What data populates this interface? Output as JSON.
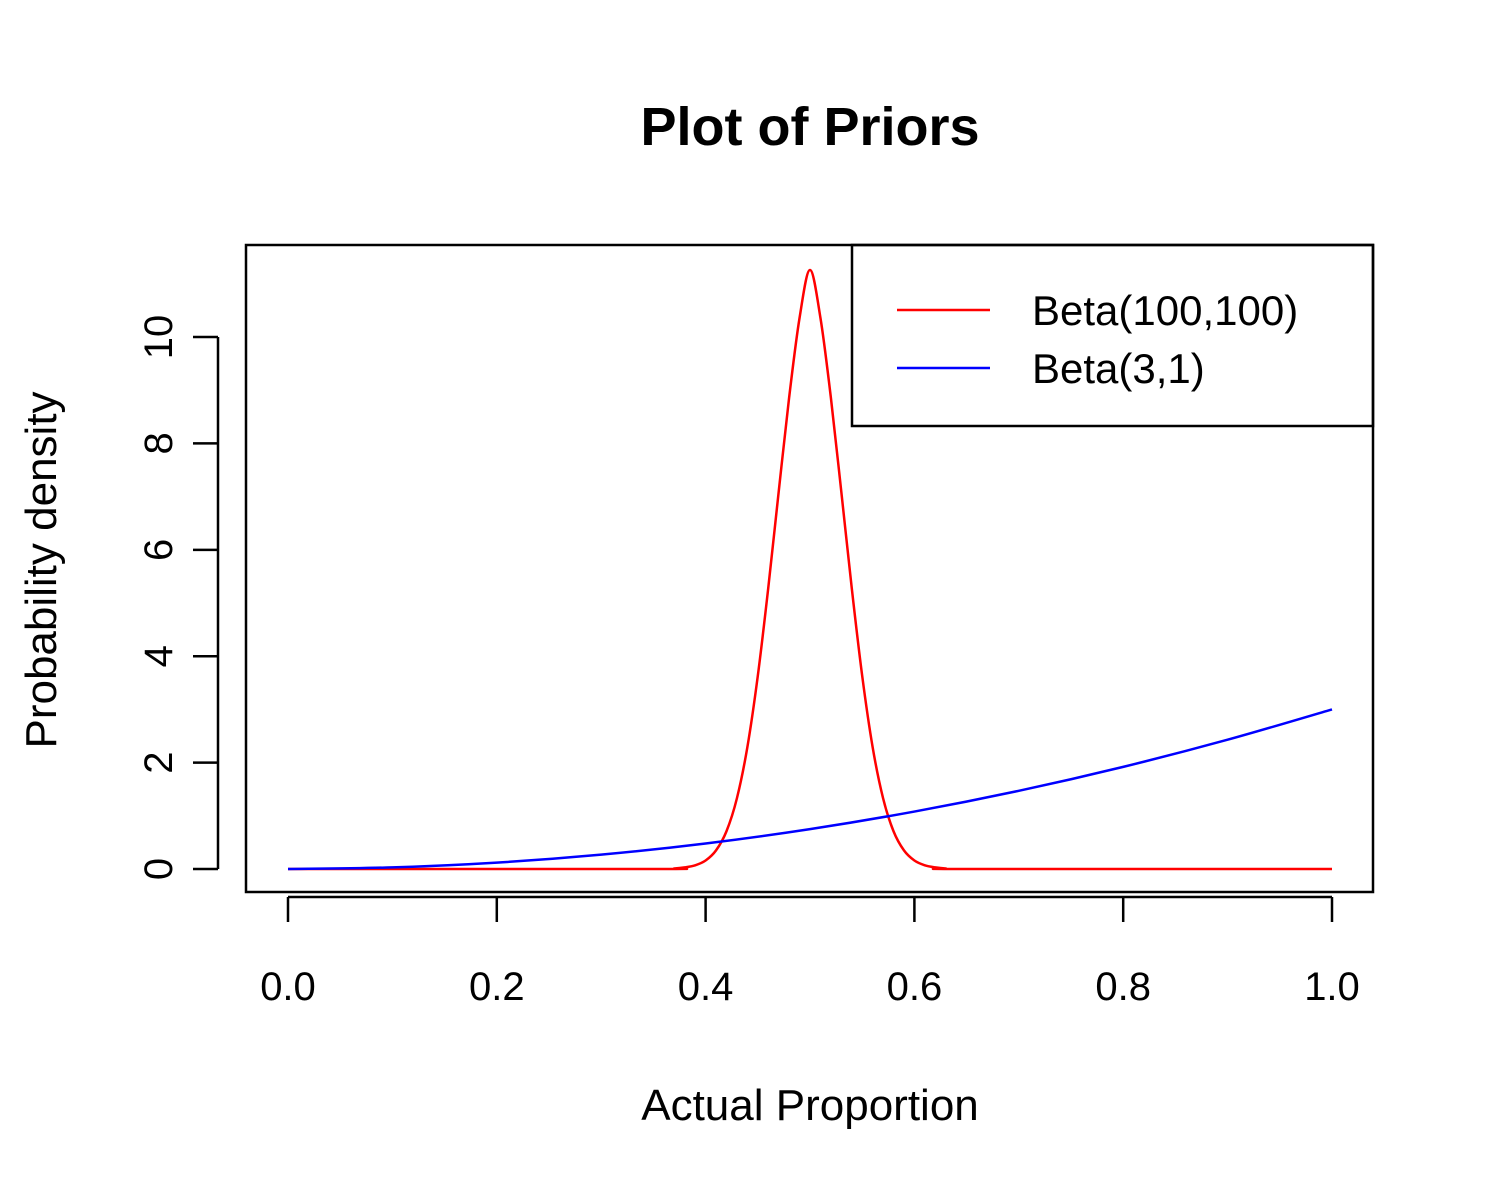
{
  "chart_data": {
    "type": "line",
    "title": "Plot of Priors",
    "xlabel": "Actual Proportion",
    "ylabel": "Probability density",
    "xlim": [
      0.0,
      1.0
    ],
    "ylim": [
      0,
      11.26
    ],
    "x_ticks": [
      "0.0",
      "0.2",
      "0.4",
      "0.6",
      "0.8",
      "1.0"
    ],
    "y_ticks": [
      "0",
      "2",
      "4",
      "6",
      "8",
      "10"
    ],
    "grid": false,
    "legend_position": "top-right",
    "series": [
      {
        "name": "Beta(100,100)",
        "color": "#ff0000",
        "x": [
          0.0,
          0.35,
          0.37,
          0.38,
          0.39,
          0.4,
          0.41,
          0.42,
          0.43,
          0.44,
          0.45,
          0.46,
          0.47,
          0.48,
          0.49,
          0.5,
          0.51,
          0.52,
          0.53,
          0.54,
          0.55,
          0.56,
          0.57,
          0.58,
          0.59,
          0.6,
          0.61,
          0.62,
          0.63,
          0.65,
          1.0
        ],
        "y": [
          0.0,
          0.0,
          0.01,
          0.03,
          0.07,
          0.16,
          0.35,
          0.71,
          1.33,
          2.29,
          3.63,
          5.28,
          7.09,
          8.86,
          10.36,
          11.26,
          10.36,
          8.86,
          7.09,
          5.28,
          3.63,
          2.29,
          1.33,
          0.71,
          0.35,
          0.16,
          0.07,
          0.03,
          0.01,
          0.0,
          0.0
        ]
      },
      {
        "name": "Beta(3,1)",
        "color": "#0000ff",
        "x": [
          0.0,
          0.1,
          0.2,
          0.3,
          0.4,
          0.5,
          0.6,
          0.7,
          0.8,
          0.9,
          1.0
        ],
        "y": [
          0.0,
          0.03,
          0.12,
          0.27,
          0.48,
          0.75,
          1.08,
          1.47,
          1.92,
          2.43,
          3.0
        ]
      }
    ]
  }
}
